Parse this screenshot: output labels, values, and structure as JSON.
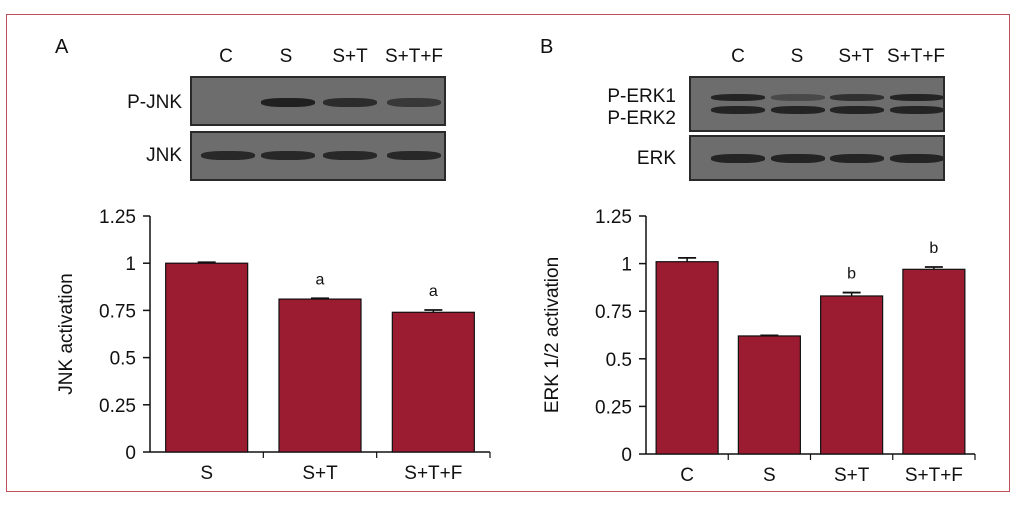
{
  "panels": {
    "a": {
      "letter": "A",
      "blot": {
        "lanes": [
          "C",
          "S",
          "S+T",
          "S+T+F"
        ],
        "rows": [
          "P-JNK",
          "JNK"
        ],
        "row_band_intensity": [
          [
            0.0,
            0.95,
            0.8,
            0.65
          ],
          [
            0.85,
            0.85,
            0.85,
            0.85
          ]
        ]
      }
    },
    "b": {
      "letter": "B",
      "blot": {
        "lanes": [
          "C",
          "S",
          "S+T",
          "S+T+F"
        ],
        "rows": [
          "P-ERK1",
          "P-ERK2",
          "ERK"
        ],
        "row_band_intensity": [
          [
            0.9,
            0.45,
            0.75,
            0.9
          ],
          [
            0.9,
            0.9,
            0.9,
            0.9
          ]
        ]
      }
    }
  },
  "colors": {
    "bar": "#9b1b30",
    "frame": "#c0505a",
    "blot_bg": "#6d6d6d",
    "band": "#1c1c1c"
  },
  "chart_data": [
    {
      "type": "bar",
      "categories": [
        "S",
        "S+T",
        "S+T+F"
      ],
      "values": [
        1.0,
        0.81,
        0.74
      ],
      "errors": [
        0.005,
        0.004,
        0.012
      ],
      "annotations": [
        "",
        "a",
        "a"
      ],
      "title": "",
      "xlabel": "",
      "ylabel": "JNK activation",
      "ylim": [
        0,
        1.25
      ],
      "yticks": [
        0,
        0.25,
        0.5,
        0.75,
        1,
        1.25
      ],
      "ytick_labels": [
        "0",
        "0.25",
        "0.5",
        "0.75",
        "1",
        "1.25"
      ]
    },
    {
      "type": "bar",
      "categories": [
        "C",
        "S",
        "S+T",
        "S+T+F"
      ],
      "values": [
        1.01,
        0.62,
        0.83,
        0.97
      ],
      "errors": [
        0.02,
        0.003,
        0.018,
        0.012
      ],
      "annotations": [
        "",
        "",
        "b",
        "b"
      ],
      "title": "",
      "xlabel": "",
      "ylabel": "ERK 1/2 activation",
      "ylim": [
        0,
        1.25
      ],
      "yticks": [
        0,
        0.25,
        0.5,
        0.75,
        1,
        1.25
      ],
      "ytick_labels": [
        "0",
        "0.25",
        "0.5",
        "0.75",
        "1",
        "1.25"
      ]
    }
  ]
}
